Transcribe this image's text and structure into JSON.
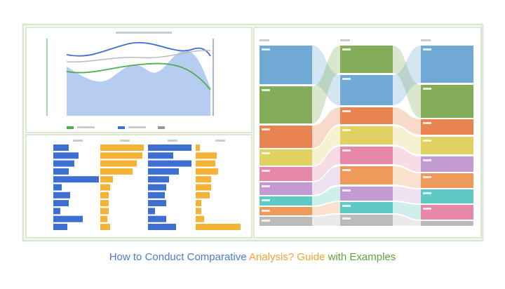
{
  "title": {
    "parts": [
      "How to Conduct Comparative",
      "Analysis? Guide",
      "with Examples"
    ]
  }
}
